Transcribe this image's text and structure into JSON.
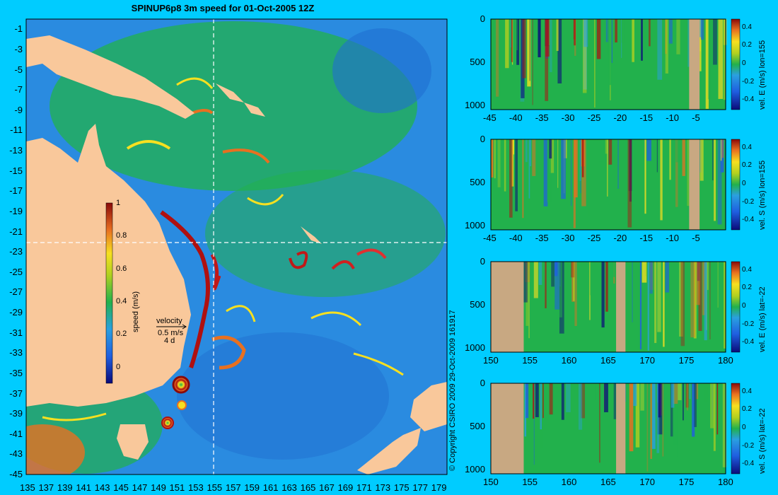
{
  "title": "SPINUP6p8 3m speed for 01-Oct-2005 12Z",
  "copyright": "© Copyright CSIRO 2009   29-Oct-2009 161917",
  "colors": {
    "background": "#00ccff",
    "land": "#f9c89b",
    "section_land": "#c8a882",
    "ocean_low": "#2a8be0",
    "ocean_mid": "#22b14c"
  },
  "map": {
    "x_ticks": [
      "135",
      "137",
      "139",
      "141",
      "143",
      "145",
      "147",
      "149",
      "151",
      "153",
      "155",
      "157",
      "159",
      "161",
      "163",
      "165",
      "167",
      "169",
      "171",
      "173",
      "175",
      "177",
      "179"
    ],
    "y_ticks": [
      "-1",
      "-3",
      "-5",
      "-7",
      "-9",
      "-11",
      "-13",
      "-15",
      "-17",
      "-19",
      "-21",
      "-23",
      "-25",
      "-27",
      "-29",
      "-31",
      "-33",
      "-35",
      "-37",
      "-39",
      "-41",
      "-43",
      "-45"
    ],
    "colorbar": {
      "label": "speed (m/s)",
      "ticks": [
        "1",
        "0.8",
        "0.6",
        "0.4",
        "0.2",
        "0"
      ]
    },
    "velocity_key": {
      "title": "velocity",
      "value": "0.5 m/s",
      "duration": "4 d"
    },
    "section_lines": {
      "lon": 155,
      "lat": -22
    }
  },
  "chart_data": [
    {
      "type": "heatmap",
      "title": "SPINUP6p8 3m speed for 01-Oct-2005 12Z",
      "xlim": [
        135,
        180
      ],
      "ylim": [
        -45,
        0
      ],
      "colorbar_label": "speed (m/s)",
      "colorbar_range": [
        0,
        1
      ]
    },
    {
      "type": "heatmap",
      "ylabel": "vel. E (m/s) lon=155",
      "x_ticks": [
        "-45",
        "-40",
        "-35",
        "-30",
        "-25",
        "-20",
        "-15",
        "-10",
        "-5"
      ],
      "y_ticks": [
        "0",
        "500",
        "1000"
      ],
      "xlim": [
        -45,
        0
      ],
      "ylim": [
        1050,
        0
      ],
      "colorbar_ticks": [
        "0.4",
        "0.2",
        "0",
        "-0.2",
        "-0.4"
      ]
    },
    {
      "type": "heatmap",
      "ylabel": "vel. S (m/s) lon=155",
      "x_ticks": [
        "-45",
        "-40",
        "-35",
        "-30",
        "-25",
        "-20",
        "-15",
        "-10",
        "-5"
      ],
      "y_ticks": [
        "0",
        "500",
        "1000"
      ],
      "xlim": [
        -45,
        0
      ],
      "ylim": [
        1050,
        0
      ],
      "colorbar_ticks": [
        "0.4",
        "0.2",
        "0",
        "-0.2",
        "-0.4"
      ]
    },
    {
      "type": "heatmap",
      "ylabel": "vel. E (m/s) lat=-22",
      "x_ticks": [
        "150",
        "155",
        "160",
        "165",
        "170",
        "175",
        "180"
      ],
      "y_ticks": [
        "0",
        "500",
        "1000"
      ],
      "xlim": [
        150,
        180
      ],
      "ylim": [
        1050,
        0
      ],
      "colorbar_ticks": [
        "0.4",
        "0.2",
        "0",
        "-0.2",
        "-0.4"
      ]
    },
    {
      "type": "heatmap",
      "ylabel": "vel. S (m/s) lat=-22",
      "x_ticks": [
        "150",
        "155",
        "160",
        "165",
        "170",
        "175",
        "180"
      ],
      "y_ticks": [
        "0",
        "500",
        "1000"
      ],
      "xlim": [
        150,
        180
      ],
      "ylim": [
        1050,
        0
      ],
      "colorbar_ticks": [
        "0.4",
        "0.2",
        "0",
        "-0.2",
        "-0.4"
      ]
    }
  ]
}
